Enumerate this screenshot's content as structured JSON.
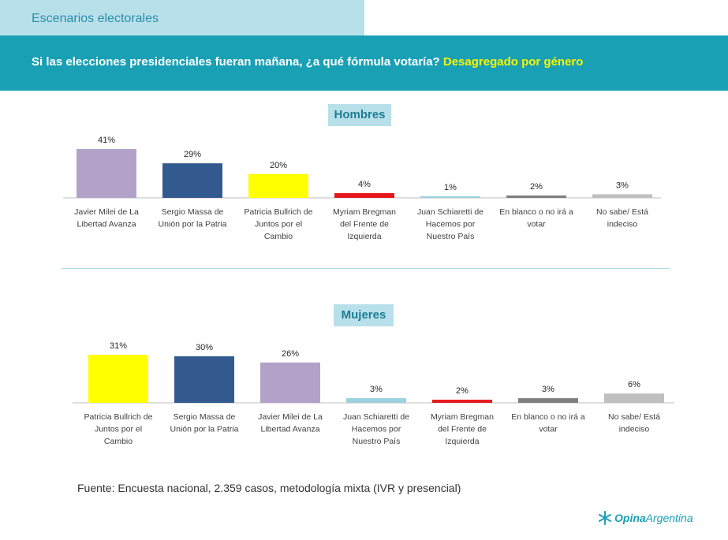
{
  "header": {
    "section_title": "Escenarios electorales",
    "question": "Si las elecciones presidenciales fueran mañana, ¿a qué fórmula votaría?",
    "highlight": "Desagregado por género"
  },
  "chart_data": [
    {
      "type": "bar",
      "title": "Hombres",
      "categories": [
        [
          "Javier Milei de La",
          "Libertad Avanza"
        ],
        [
          "Sergio Massa de",
          "Unión por la Patria"
        ],
        [
          "Patricia Bullrich de",
          "Juntos por el",
          "Cambio"
        ],
        [
          "Myriam Bregman",
          "del Frente de",
          "Izquierda"
        ],
        [
          "Juan Schiaretti de",
          "Hacemos por",
          "Nuestro País"
        ],
        [
          "En blanco o no irá a",
          "votar"
        ],
        [
          "No sabe/ Está",
          "indeciso"
        ]
      ],
      "values": [
        41,
        29,
        20,
        4,
        1,
        2,
        3
      ],
      "labels": [
        "41%",
        "29%",
        "20%",
        "4%",
        "1%",
        "2%",
        "3%"
      ],
      "colors": [
        "#b3a2c8",
        "#335a8e",
        "#ffff00",
        "#e6171b",
        "#9bd2de",
        "#7f7f7f",
        "#bfbfbf"
      ],
      "ylim": [
        0,
        41
      ]
    },
    {
      "type": "bar",
      "title": "Mujeres",
      "categories": [
        [
          "Patricia Bullrich de",
          "Juntos por el",
          "Cambio"
        ],
        [
          "Sergio Massa de",
          "Unión por la Patria"
        ],
        [
          "Javier Milei de La",
          "Libertad Avanza"
        ],
        [
          "Juan Schiaretti de",
          "Hacemos por",
          "Nuestro País"
        ],
        [
          "Myriam Bregman",
          "del Frente de",
          "Izquierda"
        ],
        [
          "En blanco o no irá a",
          "votar"
        ],
        [
          "No sabe/ Está",
          "indeciso"
        ]
      ],
      "values": [
        31,
        30,
        26,
        3,
        2,
        3,
        6
      ],
      "labels": [
        "31%",
        "30%",
        "26%",
        "3%",
        "2%",
        "3%",
        "6%"
      ],
      "colors": [
        "#ffff00",
        "#335a8e",
        "#b3a2c8",
        "#9bd2de",
        "#e6171b",
        "#7f7f7f",
        "#bfbfbf"
      ],
      "ylim": [
        0,
        31
      ]
    }
  ],
  "footer": {
    "source": "Fuente: Encuesta nacional, 2.359 casos, metodología mixta (IVR y presencial)",
    "logo_bold": "Opina",
    "logo_rest": "Argentina"
  }
}
